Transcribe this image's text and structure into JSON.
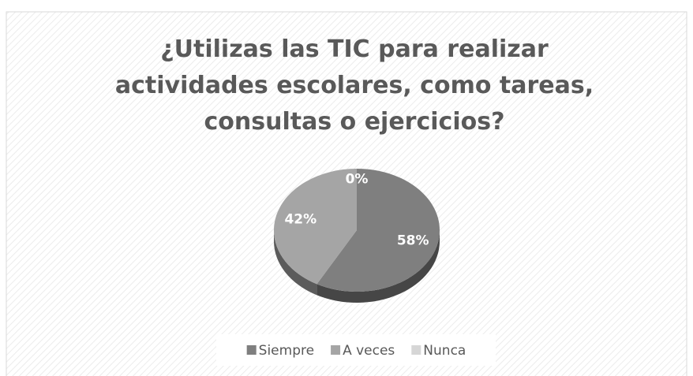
{
  "chart_data": {
    "type": "pie",
    "title": "¿Utilizas las TIC para realizar actividades escolares, como tareas, consultas o ejercicios?",
    "categories": [
      "Siempre",
      "A veces",
      "Nunca"
    ],
    "values": [
      58,
      42,
      0
    ],
    "value_labels": [
      "58%",
      "42%",
      "0%"
    ],
    "colors": [
      "#7f7f7f",
      "#a5a5a5",
      "#d6d6d6"
    ],
    "legend": "bottom"
  }
}
